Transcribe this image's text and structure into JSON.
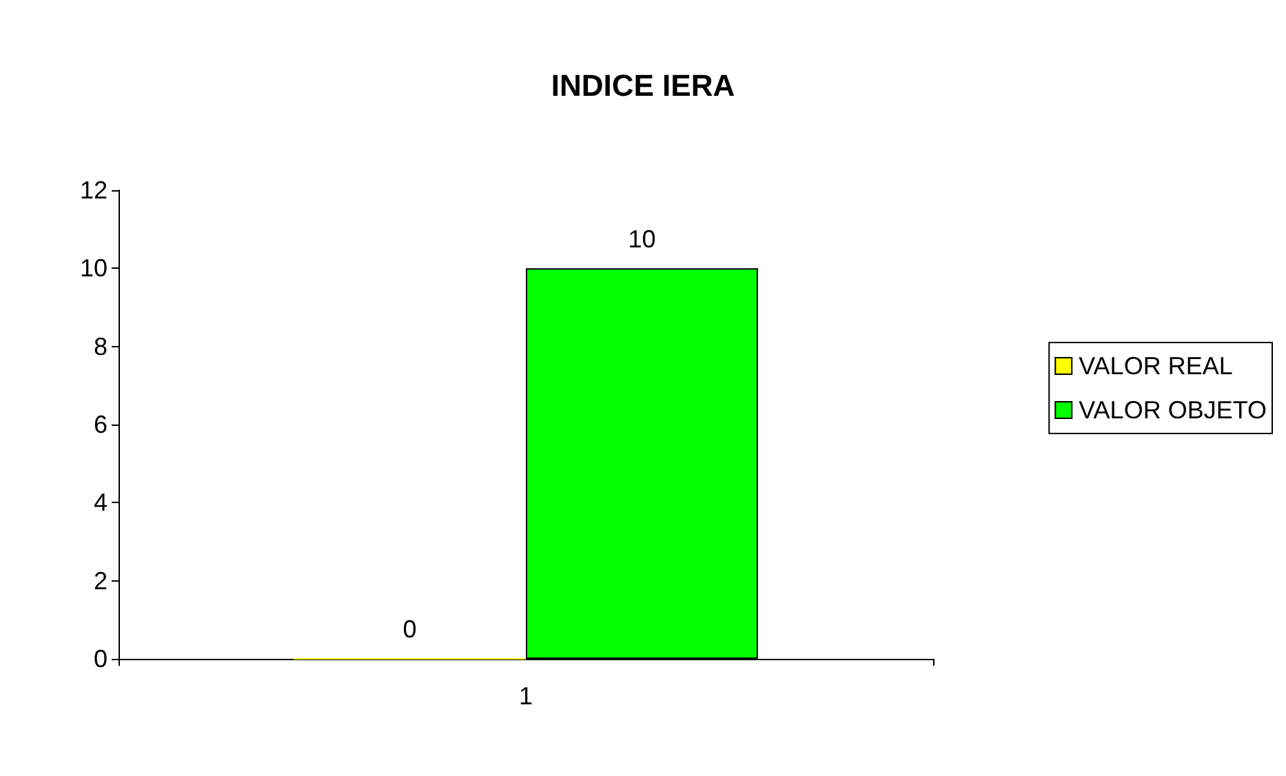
{
  "chart_data": {
    "type": "bar",
    "title": "INDICE IERA",
    "categories": [
      "1"
    ],
    "series": [
      {
        "name": "VALOR REAL",
        "color": "#ffff00",
        "values": [
          0
        ]
      },
      {
        "name": "VALOR OBJETO",
        "color": "#00ff00",
        "values": [
          10
        ]
      }
    ],
    "ylim": [
      0,
      12
    ],
    "yticks": [
      0,
      2,
      4,
      6,
      8,
      10,
      12
    ],
    "data_labels": true,
    "legend": "right",
    "grid": false
  }
}
